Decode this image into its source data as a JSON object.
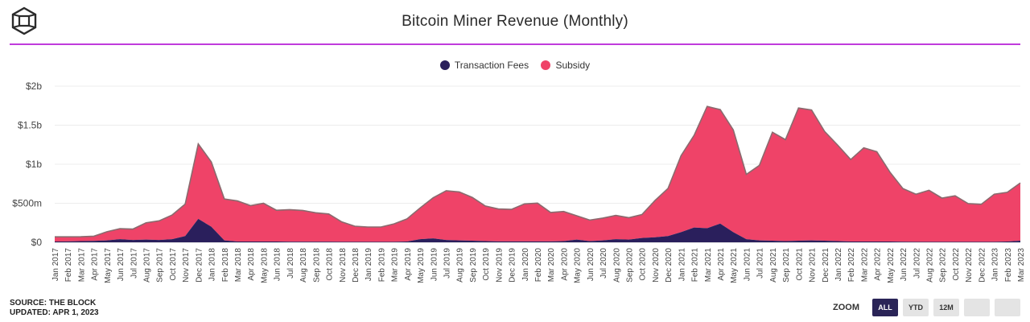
{
  "header": {
    "title": "Bitcoin Miner Revenue (Monthly)",
    "logo_icon": "cube-logo-icon"
  },
  "footer": {
    "source": "SOURCE: THE BLOCK",
    "updated": "UPDATED: APR 1, 2023"
  },
  "zoom": {
    "label": "ZOOM",
    "buttons": [
      {
        "label": "ALL",
        "active": true
      },
      {
        "label": "YTD",
        "active": false
      },
      {
        "label": "12M",
        "active": false
      },
      {
        "label": "",
        "active": false
      },
      {
        "label": "",
        "active": false
      }
    ]
  },
  "colors": {
    "fees": "#2a1f5c",
    "subsidy": "#ef4368",
    "rule": "#c03bdc"
  },
  "chart_data": {
    "type": "area",
    "stacked": true,
    "title": "Bitcoin Miner Revenue (Monthly)",
    "xlabel": "",
    "ylabel": "",
    "ylim": [
      0,
      2000000000
    ],
    "yticks": [
      0,
      500000000,
      1000000000,
      1500000000,
      2000000000
    ],
    "ytick_labels": [
      "$0",
      "$500m",
      "$1b",
      "$1.5b",
      "$2b"
    ],
    "grid": true,
    "legend": "top-center",
    "categories": [
      "Jan 2017",
      "Feb 2017",
      "Mar 2017",
      "Apr 2017",
      "May 2017",
      "Jun 2017",
      "Jul 2017",
      "Aug 2017",
      "Sep 2017",
      "Oct 2017",
      "Nov 2017",
      "Dec 2017",
      "Jan 2018",
      "Feb 2018",
      "Mar 2018",
      "Apr 2018",
      "May 2018",
      "Jun 2018",
      "Jul 2018",
      "Aug 2018",
      "Sep 2018",
      "Oct 2018",
      "Nov 2018",
      "Dec 2018",
      "Jan 2019",
      "Feb 2019",
      "Mar 2019",
      "Apr 2019",
      "May 2019",
      "Jun 2019",
      "Jul 2019",
      "Aug 2019",
      "Sep 2019",
      "Oct 2019",
      "Nov 2019",
      "Dec 2019",
      "Jan 2020",
      "Feb 2020",
      "Mar 2020",
      "Apr 2020",
      "May 2020",
      "Jun 2020",
      "Jul 2020",
      "Aug 2020",
      "Sep 2020",
      "Oct 2020",
      "Nov 2020",
      "Dec 2020",
      "Jan 2021",
      "Feb 2021",
      "Mar 2021",
      "Apr 2021",
      "May 2021",
      "Jun 2021",
      "Jul 2021",
      "Aug 2021",
      "Sep 2021",
      "Oct 2021",
      "Nov 2021",
      "Dec 2021",
      "Jan 2022",
      "Feb 2022",
      "Mar 2022",
      "Apr 2022",
      "May 2022",
      "Jun 2022",
      "Jul 2022",
      "Aug 2022",
      "Sep 2022",
      "Oct 2022",
      "Nov 2022",
      "Dec 2022",
      "Jan 2023",
      "Feb 2023",
      "Mar 2023"
    ],
    "series": [
      {
        "name": "Transaction Fees",
        "values": [
          10,
          12,
          15,
          18,
          25,
          40,
          30,
          35,
          30,
          40,
          80,
          300,
          200,
          25,
          10,
          10,
          10,
          10,
          8,
          8,
          8,
          8,
          6,
          6,
          6,
          6,
          6,
          10,
          40,
          50,
          30,
          25,
          20,
          15,
          12,
          12,
          12,
          12,
          12,
          15,
          35,
          15,
          25,
          40,
          35,
          55,
          65,
          80,
          130,
          190,
          180,
          240,
          130,
          40,
          25,
          20,
          15,
          20,
          25,
          20,
          15,
          10,
          10,
          10,
          10,
          8,
          6,
          6,
          6,
          6,
          6,
          6,
          6,
          10,
          20
        ]
      },
      {
        "name": "Subsidy",
        "values": [
          60,
          58,
          57,
          60,
          110,
          135,
          140,
          215,
          245,
          310,
          410,
          960,
          830,
          530,
          520,
          460,
          490,
          400,
          410,
          400,
          370,
          355,
          255,
          200,
          190,
          190,
          230,
          290,
          400,
          520,
          630,
          620,
          555,
          450,
          415,
          410,
          480,
          490,
          370,
          380,
          305,
          270,
          285,
          305,
          280,
          300,
          470,
          610,
          980,
          1180,
          1560,
          1460,
          1310,
          830,
          960,
          1390,
          1300,
          1700,
          1670,
          1400,
          1230,
          1050,
          1200,
          1150,
          890,
          680,
          610,
          660,
          560,
          590,
          490,
          480,
          610,
          630,
          740
        ]
      }
    ]
  }
}
